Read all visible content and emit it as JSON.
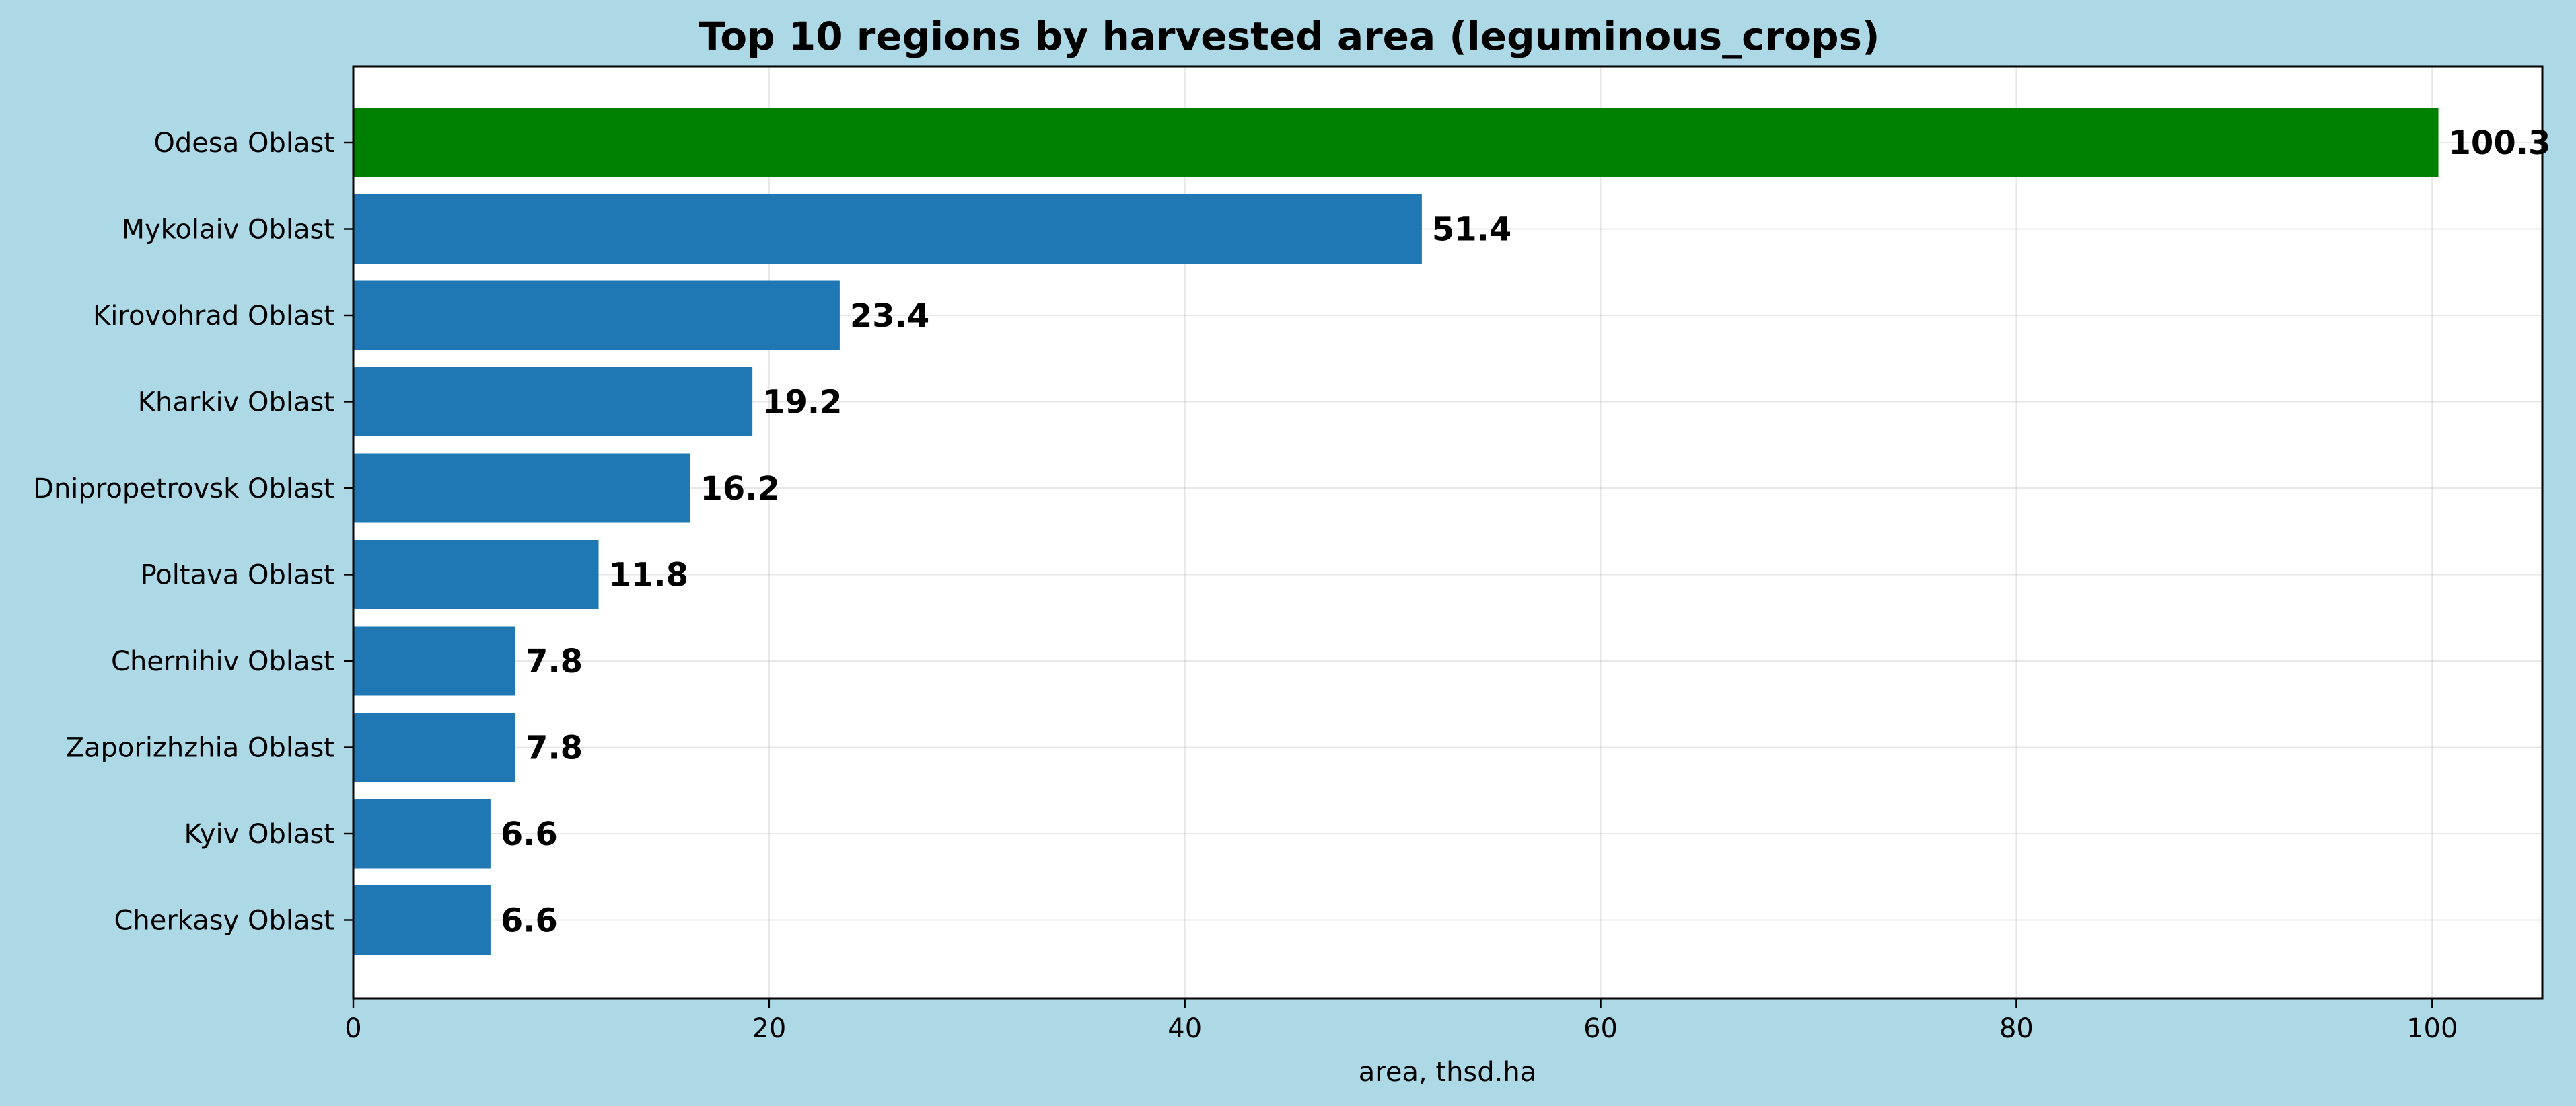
{
  "chart_data": {
    "type": "bar",
    "orientation": "horizontal",
    "title": "Top 10 regions by harvested area (leguminous_crops)",
    "xlabel": "area, thsd.ha",
    "ylabel": "",
    "xlim": [
      0,
      105.3
    ],
    "xticks": [
      0,
      20,
      40,
      60,
      80,
      100
    ],
    "grid": true,
    "legend": "none",
    "categories": [
      "Odesa Oblast",
      "Mykolaiv Oblast",
      "Kirovohrad Oblast",
      "Kharkiv Oblast",
      "Dnipropetrovsk Oblast",
      "Poltava Oblast",
      "Chernihiv Oblast",
      "Zaporizhzhia Oblast",
      "Kyiv Oblast",
      "Cherkasy Oblast"
    ],
    "values": [
      100.3,
      51.4,
      23.4,
      19.2,
      16.2,
      11.8,
      7.8,
      7.8,
      6.6,
      6.6
    ],
    "value_labels": [
      "100.3",
      "51.4",
      "23.4",
      "19.2",
      "16.2",
      "11.8",
      "7.8",
      "7.8",
      "6.6",
      "6.6"
    ],
    "highlight_index": 0,
    "colors": {
      "figure_background": "#add8e6",
      "plot_background": "#ffffff",
      "bar": "#1f77b4",
      "highlight_bar": "#008000",
      "text": "#000000"
    }
  }
}
